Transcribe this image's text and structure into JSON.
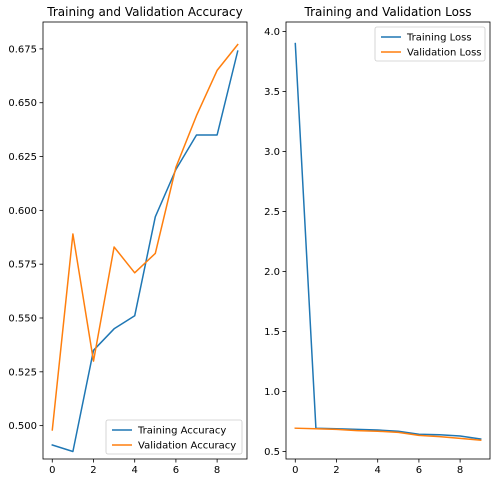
{
  "chart_data": [
    {
      "type": "line",
      "title": "Training and Validation Accuracy",
      "xlabel": "",
      "ylabel": "",
      "x": [
        0,
        1,
        2,
        3,
        4,
        5,
        6,
        7,
        8,
        9
      ],
      "xticks": [
        "0",
        "2",
        "4",
        "6",
        "8"
      ],
      "yticks": [
        "0.500",
        "0.525",
        "0.550",
        "0.575",
        "0.600",
        "0.625",
        "0.650",
        "0.675"
      ],
      "xlim": [
        -0.45,
        9.45
      ],
      "ylim": [
        0.4845,
        0.6875
      ],
      "grid": false,
      "legend_position": "lower right",
      "series": [
        {
          "name": "Training Accuracy",
          "color": "#1f77b4",
          "values": [
            0.491,
            0.488,
            0.535,
            0.545,
            0.551,
            0.597,
            0.619,
            0.635,
            0.635,
            0.674
          ]
        },
        {
          "name": "Validation Accuracy",
          "color": "#ff7f0e",
          "values": [
            0.498,
            0.589,
            0.53,
            0.583,
            0.571,
            0.58,
            0.62,
            0.644,
            0.665,
            0.677
          ]
        }
      ]
    },
    {
      "type": "line",
      "title": "Training and Validation Loss",
      "xlabel": "",
      "ylabel": "",
      "x": [
        0,
        1,
        2,
        3,
        4,
        5,
        6,
        7,
        8,
        9
      ],
      "xticks": [
        "0",
        "2",
        "4",
        "6",
        "8"
      ],
      "yticks": [
        "0.5",
        "1.0",
        "1.5",
        "2.0",
        "2.5",
        "3.0",
        "3.5",
        "4.0"
      ],
      "xlim": [
        -0.45,
        9.45
      ],
      "ylim": [
        0.438,
        4.08
      ],
      "grid": false,
      "legend_position": "upper right",
      "series": [
        {
          "name": "Training Loss",
          "color": "#1f77b4",
          "values": [
            3.9,
            0.695,
            0.69,
            0.685,
            0.68,
            0.67,
            0.645,
            0.64,
            0.63,
            0.605
          ]
        },
        {
          "name": "Validation Loss",
          "color": "#ff7f0e",
          "values": [
            0.695,
            0.69,
            0.685,
            0.675,
            0.67,
            0.66,
            0.635,
            0.625,
            0.61,
            0.595
          ]
        }
      ]
    }
  ]
}
